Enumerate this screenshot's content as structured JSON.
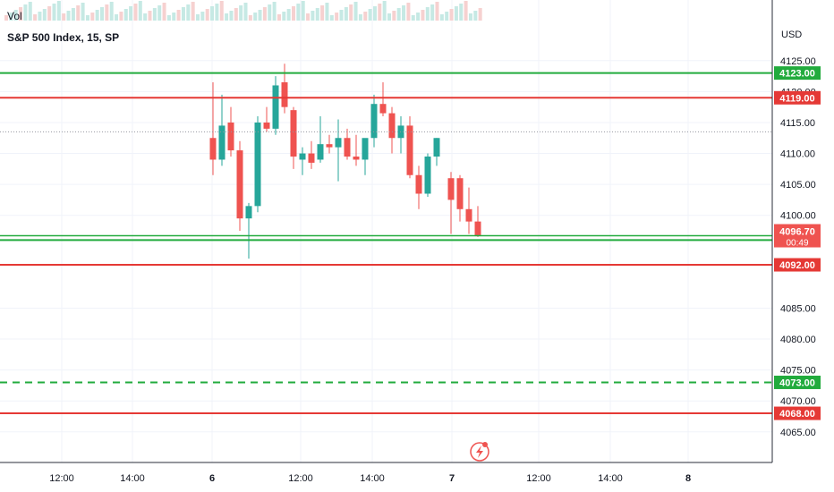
{
  "header": {
    "volume_label": "Vol",
    "symbol_title": "S&P 500 Index, 15, SP",
    "currency": "USD"
  },
  "chart_data": {
    "type": "candlestick",
    "title": "S&P 500 Index, 15, SP",
    "ylabel": "USD",
    "ylim": [
      4061.5,
      4133.5
    ],
    "y_ticks": [
      "4065.00",
      "4070.00",
      "4075.00",
      "4080.00",
      "4085.00",
      "4100.00",
      "4105.00",
      "4110.00",
      "4115.00",
      "4120.00",
      "4125.00"
    ],
    "x_tick_labels": [
      "12:00",
      "14:00",
      "6",
      "12:00",
      "14:00",
      "7",
      "12:00",
      "14:00",
      "8"
    ],
    "up_color": "#26a69a",
    "down_color": "#ef5350",
    "grid": true,
    "horizontal_levels": [
      {
        "value": 4123.0,
        "label": "4123.00",
        "color": "#22ab3d",
        "style": "solid"
      },
      {
        "value": 4119.0,
        "label": "4119.00",
        "color": "#e53935",
        "style": "solid"
      },
      {
        "value": 4096.0,
        "label": "4096.00",
        "color": "#22ab3d",
        "style": "solid"
      },
      {
        "value": 4092.0,
        "label": "4092.00",
        "color": "#e53935",
        "style": "solid"
      },
      {
        "value": 4073.0,
        "label": "4073.00",
        "color": "#22ab3d",
        "style": "dashed"
      },
      {
        "value": 4068.0,
        "label": "4068.00",
        "color": "#e53935",
        "style": "solid"
      }
    ],
    "last_price": {
      "value": 4096.7,
      "label": "4096.70",
      "countdown": "00:49",
      "color": "#ef5350"
    },
    "candles": [
      {
        "o": 4112.5,
        "h": 4121.5,
        "l": 4106.5,
        "c": 4109.0
      },
      {
        "o": 4109.0,
        "h": 4119.5,
        "l": 4108.0,
        "c": 4114.5
      },
      {
        "o": 4115.0,
        "h": 4117.5,
        "l": 4109.5,
        "c": 4110.5
      },
      {
        "o": 4110.5,
        "h": 4112.0,
        "l": 4097.5,
        "c": 4099.5
      },
      {
        "o": 4099.5,
        "h": 4102.0,
        "l": 4093.0,
        "c": 4101.5
      },
      {
        "o": 4101.5,
        "h": 4116.0,
        "l": 4100.5,
        "c": 4115.0
      },
      {
        "o": 4115.0,
        "h": 4117.5,
        "l": 4113.5,
        "c": 4114.0
      },
      {
        "o": 4114.0,
        "h": 4122.5,
        "l": 4113.0,
        "c": 4121.0
      },
      {
        "o": 4121.5,
        "h": 4124.5,
        "l": 4116.5,
        "c": 4117.5
      },
      {
        "o": 4117.0,
        "h": 4117.5,
        "l": 4107.5,
        "c": 4109.5
      },
      {
        "o": 4109.0,
        "h": 4111.0,
        "l": 4106.5,
        "c": 4110.0
      },
      {
        "o": 4110.0,
        "h": 4112.0,
        "l": 4107.5,
        "c": 4108.5
      },
      {
        "o": 4109.0,
        "h": 4116.0,
        "l": 4108.5,
        "c": 4111.5
      },
      {
        "o": 4111.5,
        "h": 4113.0,
        "l": 4110.0,
        "c": 4111.0
      },
      {
        "o": 4111.0,
        "h": 4115.5,
        "l": 4105.5,
        "c": 4112.5
      },
      {
        "o": 4112.5,
        "h": 4114.0,
        "l": 4109.0,
        "c": 4109.5
      },
      {
        "o": 4109.5,
        "h": 4113.0,
        "l": 4108.0,
        "c": 4109.0
      },
      {
        "o": 4109.0,
        "h": 4112.0,
        "l": 4106.5,
        "c": 4112.5
      },
      {
        "o": 4112.5,
        "h": 4119.5,
        "l": 4111.0,
        "c": 4118.0
      },
      {
        "o": 4118.0,
        "h": 4121.5,
        "l": 4116.0,
        "c": 4116.5
      },
      {
        "o": 4116.5,
        "h": 4117.5,
        "l": 4110.0,
        "c": 4112.5
      },
      {
        "o": 4112.5,
        "h": 4116.0,
        "l": 4110.0,
        "c": 4114.5
      },
      {
        "o": 4114.5,
        "h": 4116.0,
        "l": 4106.0,
        "c": 4106.5
      },
      {
        "o": 4106.5,
        "h": 4108.0,
        "l": 4101.0,
        "c": 4103.5
      },
      {
        "o": 4103.5,
        "h": 4110.0,
        "l": 4103.0,
        "c": 4109.5
      },
      {
        "o": 4109.5,
        "h": 4112.5,
        "l": 4108.0,
        "c": 4112.5
      },
      {
        "o": 4106.0,
        "h": 4107.0,
        "l": 4097.0,
        "c": 4102.5
      },
      {
        "o": 4106.0,
        "h": 4106.5,
        "l": 4099.0,
        "c": 4101.0
      },
      {
        "o": 4101.0,
        "h": 4104.5,
        "l": 4097.0,
        "c": 4099.0
      },
      {
        "o": 4099.0,
        "h": 4101.5,
        "l": 4096.5,
        "c": 4096.7
      }
    ]
  }
}
